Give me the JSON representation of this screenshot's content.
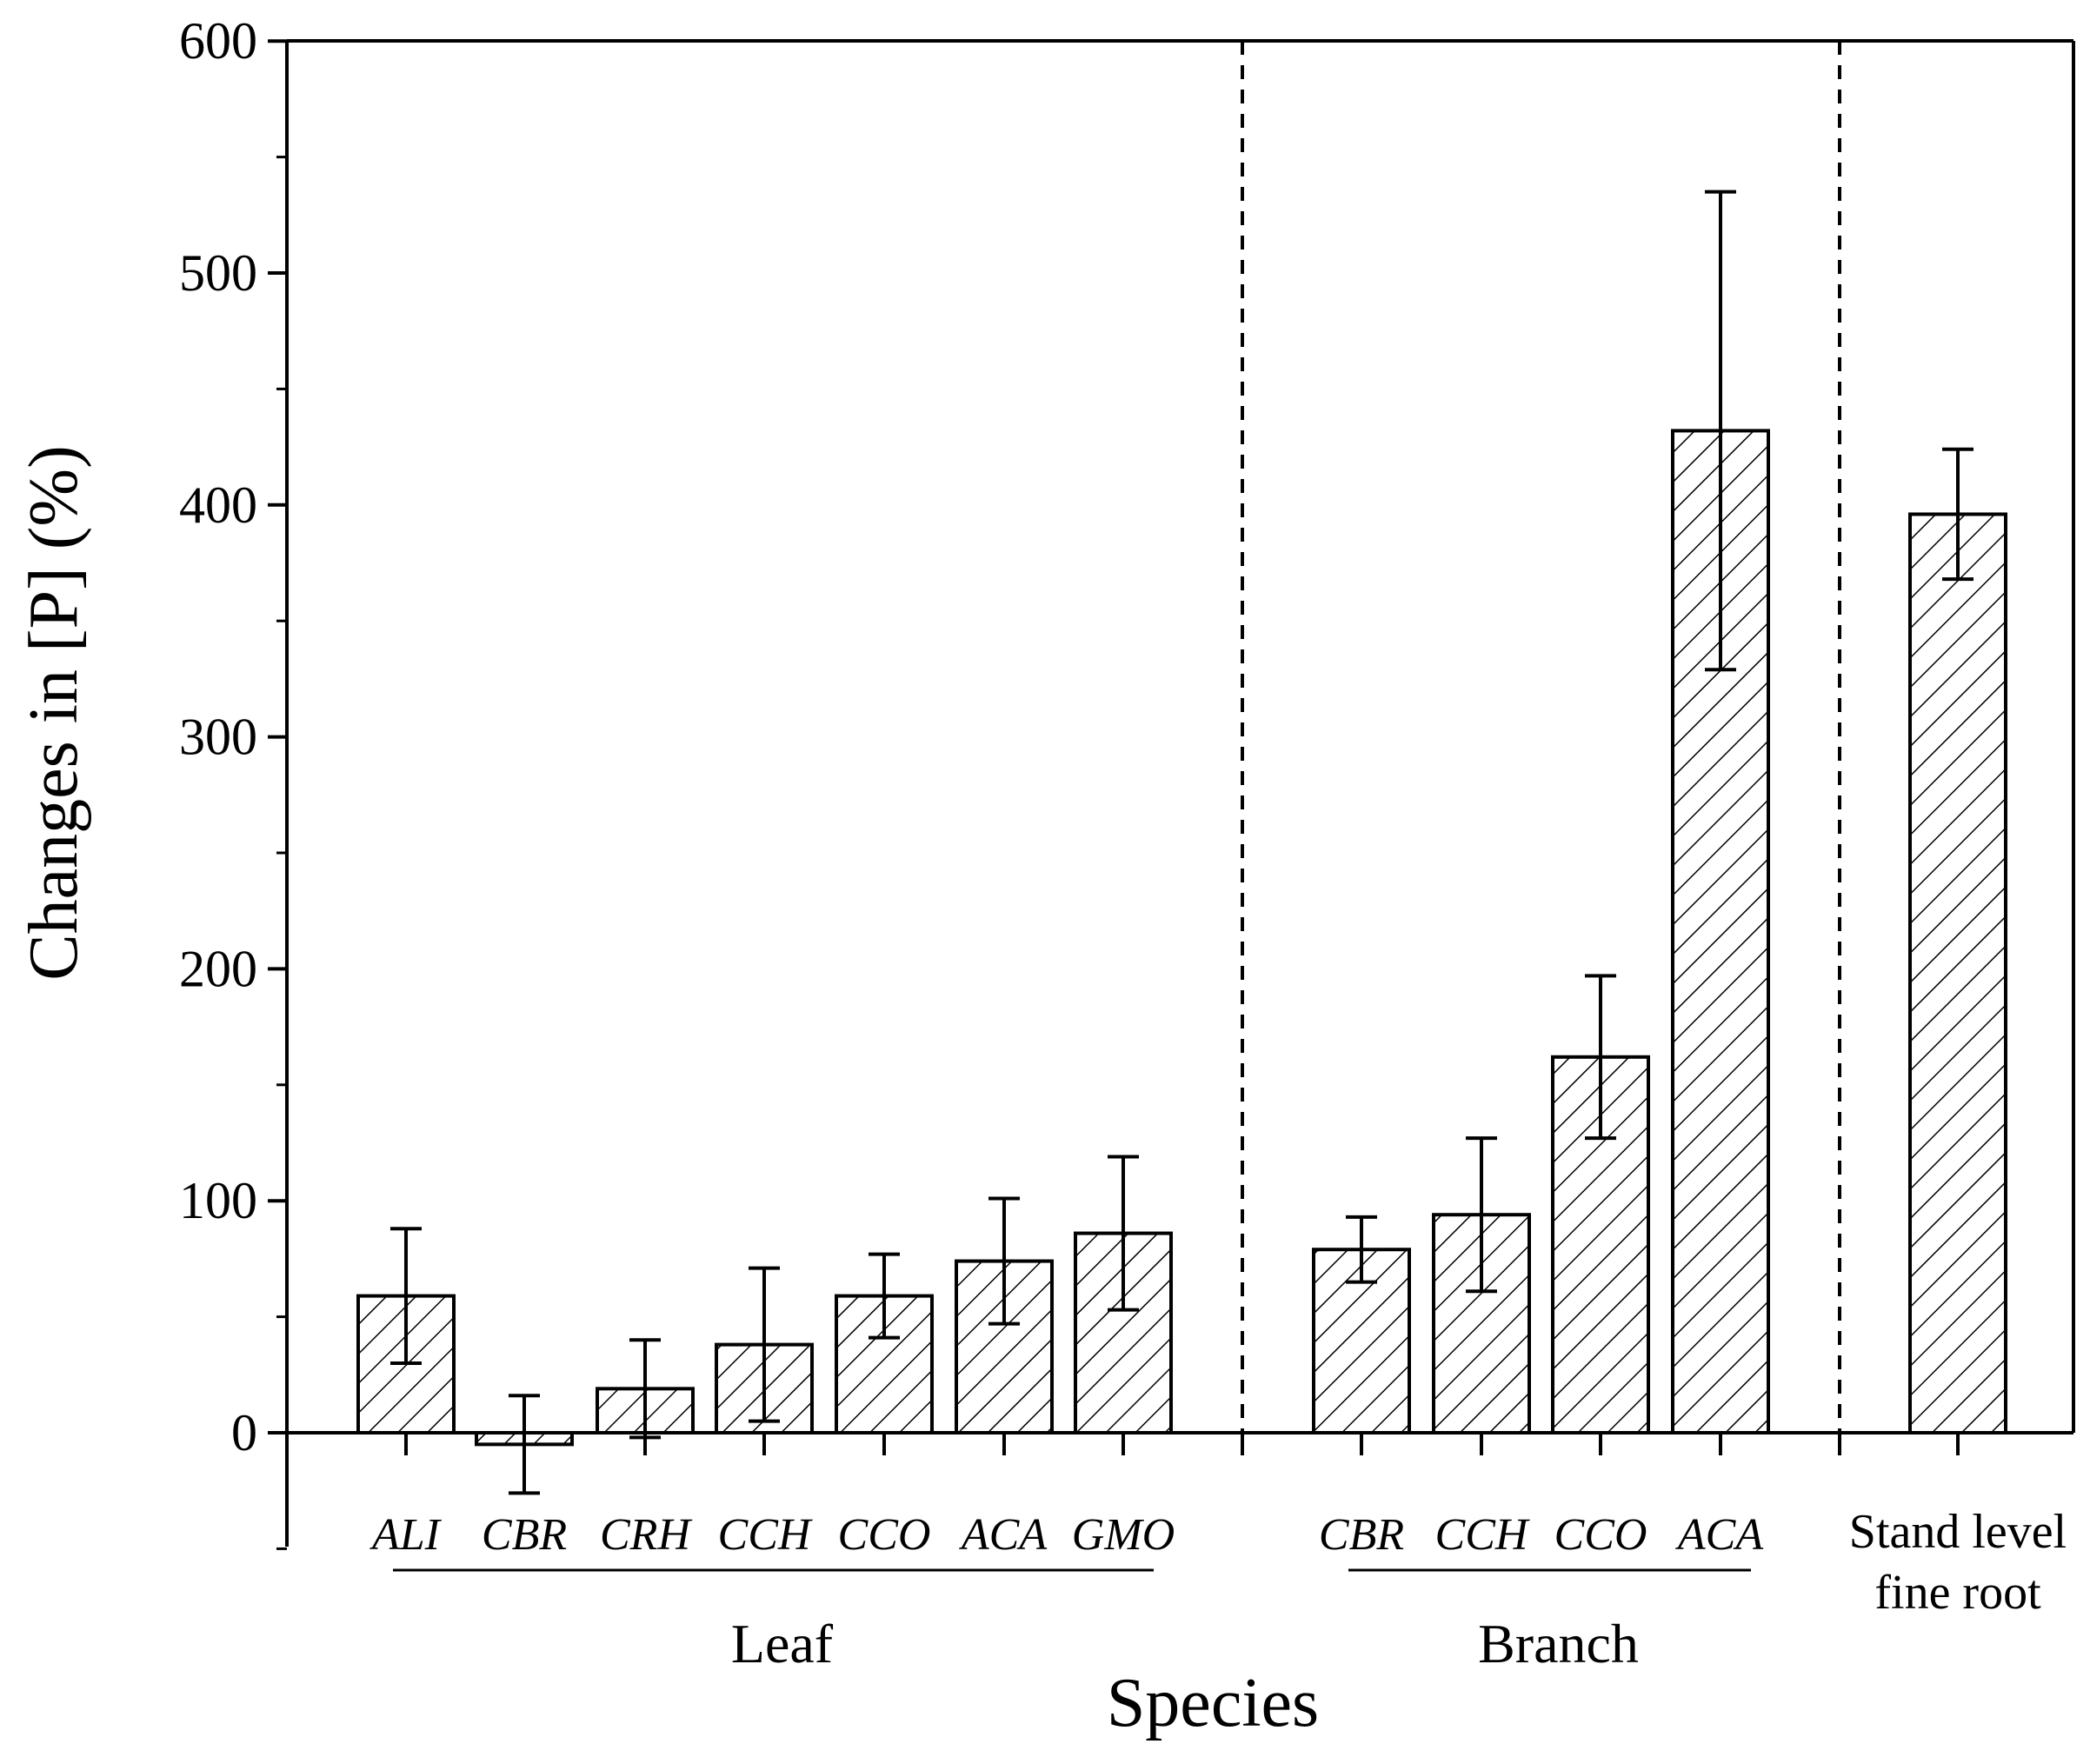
{
  "chart_data": {
    "type": "bar",
    "xlabel": "Species",
    "ylabel": "Changes in [P]  (%)",
    "ylim": [
      -50,
      600
    ],
    "yticks": [
      0,
      100,
      200,
      300,
      400,
      500,
      600
    ],
    "yticks_labels": [
      "0",
      "100",
      "200",
      "300",
      "400",
      "500",
      "600"
    ],
    "groups": [
      {
        "name": "Leaf",
        "bars": [
          {
            "label": "ALI",
            "value": 59,
            "err": 29
          },
          {
            "label": "CBR",
            "value": -5,
            "err": 21
          },
          {
            "label": "CRH",
            "value": 19,
            "err": 21
          },
          {
            "label": "CCH",
            "value": 38,
            "err": 33
          },
          {
            "label": "CCO",
            "value": 59,
            "err": 18
          },
          {
            "label": "ACA",
            "value": 74,
            "err": 27
          },
          {
            "label": "GMO",
            "value": 86,
            "err": 33
          }
        ]
      },
      {
        "name": "Branch",
        "bars": [
          {
            "label": "CBR",
            "value": 79,
            "err": 14
          },
          {
            "label": "CCH",
            "value": 94,
            "err": 33
          },
          {
            "label": "CCO",
            "value": 162,
            "err": 35
          },
          {
            "label": "ACA",
            "value": 432,
            "err": 103
          }
        ]
      },
      {
        "name": "",
        "bars": [
          {
            "label": "Stand level fine root",
            "label_lines": [
              "Stand level",
              "fine root"
            ],
            "value": 396,
            "err": 28
          }
        ]
      }
    ],
    "fill_pattern": "diagonal-hatch",
    "group_separators": "dashed-vertical"
  }
}
